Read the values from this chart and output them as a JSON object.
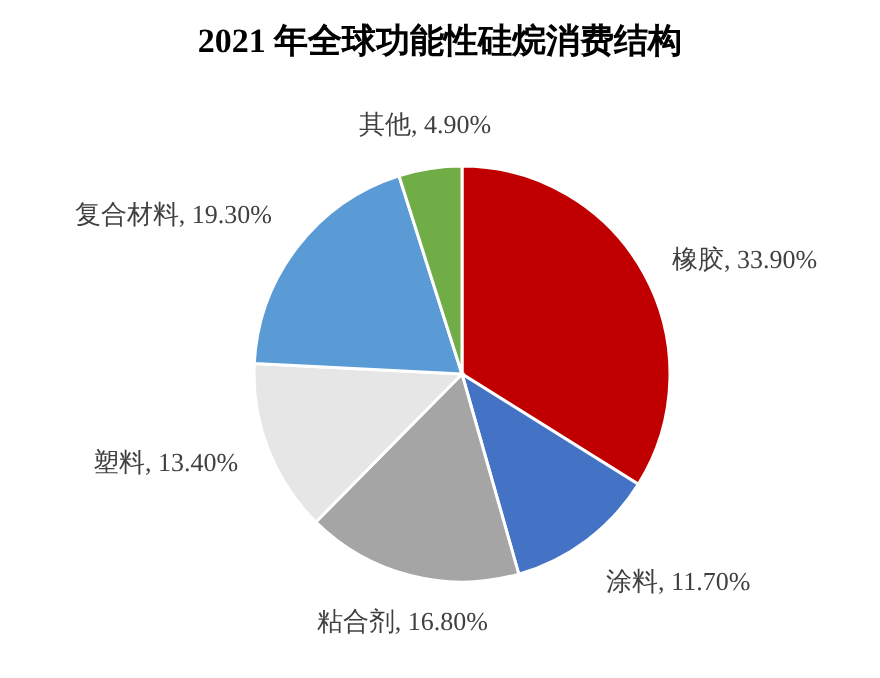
{
  "chart_data": {
    "type": "pie",
    "title": "2021 年全球功能性硅烷消费结构",
    "categories": [
      "橡胶",
      "涂料",
      "粘合剂",
      "塑料",
      "复合材料",
      "其他"
    ],
    "values": [
      33.9,
      11.7,
      16.8,
      13.4,
      19.3,
      4.9
    ],
    "value_labels": [
      "33.90%",
      "11.70%",
      "16.80%",
      "13.40%",
      "19.30%",
      "4.90%"
    ],
    "colors": [
      "#c00000",
      "#4472c4",
      "#a5a5a5",
      "#e7e6e6",
      "#5b9bd5",
      "#70ad47"
    ],
    "legend": false
  }
}
